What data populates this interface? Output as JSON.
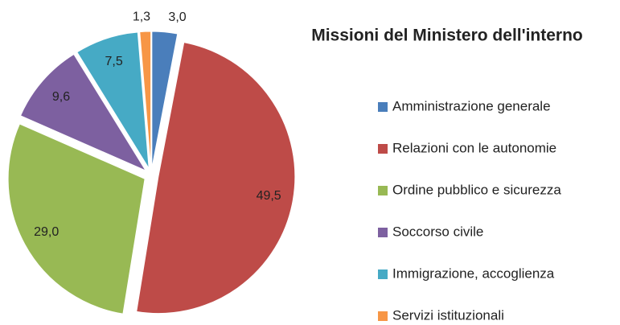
{
  "chart_data": {
    "type": "pie",
    "title": "Missioni del Ministero dell'interno",
    "categories": [
      "Amministrazione generale",
      "Relazioni con le autonomie",
      "Ordine pubblico e sicurezza",
      "Soccorso civile",
      "Immigrazione, accoglienza",
      "Servizi istituzionali"
    ],
    "values": [
      3.0,
      49.5,
      29.0,
      9.6,
      7.5,
      1.3
    ],
    "value_labels": [
      "3,0",
      "49,5",
      "29,0",
      "9,6",
      "7,5",
      "1,3"
    ],
    "colors": [
      "#4a7ebb",
      "#be4b48",
      "#98b954",
      "#7d60a0",
      "#46aac5",
      "#f79646"
    ],
    "legend": "right"
  }
}
